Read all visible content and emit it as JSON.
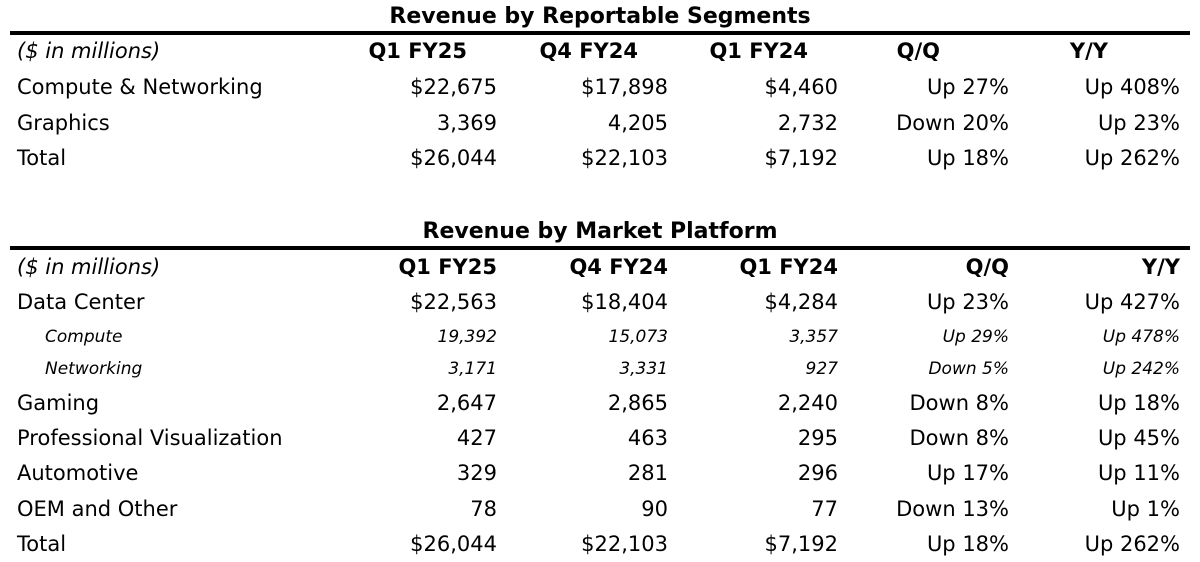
{
  "segments": {
    "title": "Revenue by Reportable Segments",
    "header": [
      "($ in millions)",
      "Q1 FY25",
      "Q4 FY24",
      "Q1 FY24",
      "Q/Q",
      "Y/Y"
    ],
    "rows": [
      [
        "Compute & Networking",
        "$22,675",
        "$17,898",
        "$4,460",
        "Up 27%",
        "Up 408%"
      ],
      [
        "Graphics",
        "3,369",
        "4,205",
        "2,732",
        "Down 20%",
        "Up 23%"
      ],
      [
        "Total",
        "$26,044",
        "$22,103",
        "$7,192",
        "Up 18%",
        "Up 262%"
      ]
    ]
  },
  "platforms": {
    "title": "Revenue by Market Platform",
    "header": [
      "($ in millions)",
      "Q1 FY25",
      "Q4 FY24",
      "Q1 FY24",
      "Q/Q",
      "Y/Y"
    ],
    "rows": [
      [
        "Data Center",
        "$22,563",
        "$18,404",
        "$4,284",
        "Up 23%",
        "Up 427%"
      ],
      [
        "Compute",
        "19,392",
        "15,073",
        "3,357",
        "Up 29%",
        "Up 478%"
      ],
      [
        "Networking",
        "3,171",
        "3,331",
        "927",
        "Down 5%",
        "Up 242%"
      ],
      [
        "Gaming",
        "2,647",
        "2,865",
        "2,240",
        "Down 8%",
        "Up 18%"
      ],
      [
        "Professional Visualization",
        "427",
        "463",
        "295",
        "Down 8%",
        "Up 45%"
      ],
      [
        "Automotive",
        "329",
        "281",
        "296",
        "Up 17%",
        "Up 11%"
      ],
      [
        "OEM and Other",
        "78",
        "90",
        "77",
        "Down 13%",
        "Up 1%"
      ],
      [
        "Total",
        "$26,044",
        "$22,103",
        "$7,192",
        "Up 18%",
        "Up 262%"
      ]
    ]
  }
}
